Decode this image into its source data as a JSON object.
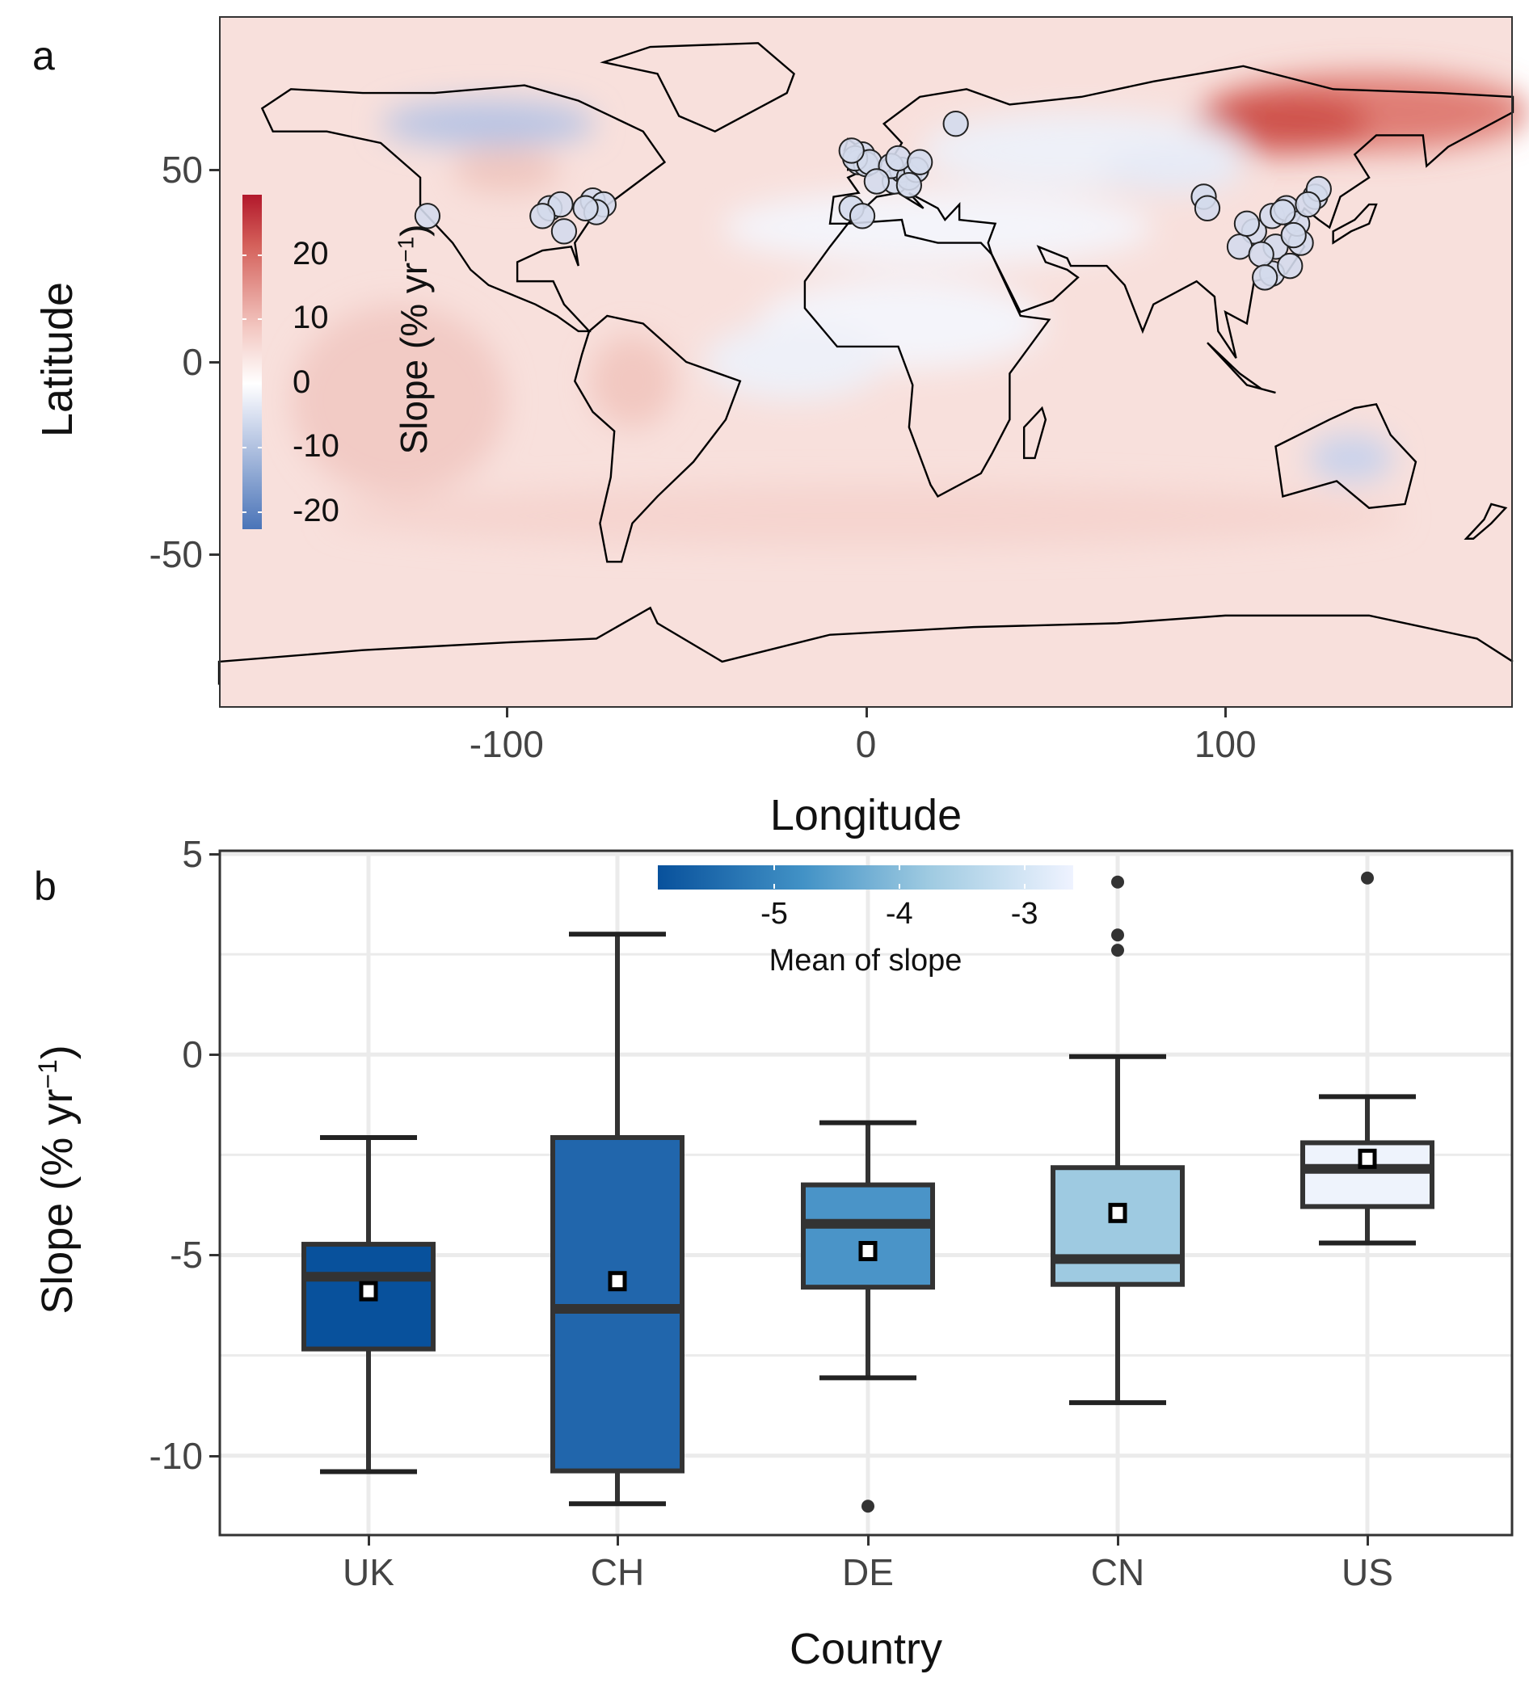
{
  "chart_data": [
    {
      "panel": "a",
      "type": "scatter",
      "subtype": "map-raster-with-site-points",
      "xlabel": "Longitude",
      "ylabel": "Latitude",
      "xlim": [
        -180,
        180
      ],
      "ylim": [
        -90,
        90
      ],
      "xticks": [
        "-100",
        "0",
        "100"
      ],
      "xtick_values": [
        -100,
        0,
        100
      ],
      "yticks": [
        "50",
        "0",
        "-50"
      ],
      "ytick_values": [
        50,
        0,
        -50
      ],
      "legend": {
        "title": "Slope (% yr",
        "title_sup": "−1",
        "title_end": ")",
        "labels": [
          "20",
          "10",
          "0",
          "-10",
          "-20"
        ],
        "values": [
          20,
          10,
          0,
          -10,
          -20
        ],
        "range": [
          -22.7,
          29.4
        ],
        "low_color": "#4a74b8",
        "mid_color": "#ffffff",
        "high_color": "#b2182b",
        "placement": "left-inside"
      },
      "sites": [
        [
          -122,
          38
        ],
        [
          -88,
          40
        ],
        [
          -85,
          41
        ],
        [
          -90,
          38
        ],
        [
          -76,
          42
        ],
        [
          -73,
          41
        ],
        [
          -75,
          39
        ],
        [
          -84,
          34
        ],
        [
          -78,
          40
        ],
        [
          -1,
          54
        ],
        [
          -2,
          52
        ],
        [
          0,
          51.5
        ],
        [
          -3,
          53
        ],
        [
          1,
          52
        ],
        [
          -4,
          55
        ],
        [
          8,
          47
        ],
        [
          10,
          50
        ],
        [
          7,
          51
        ],
        [
          12,
          48
        ],
        [
          14,
          50
        ],
        [
          9,
          53
        ],
        [
          3,
          47
        ],
        [
          -4,
          40
        ],
        [
          -1,
          38
        ],
        [
          25,
          62
        ],
        [
          12,
          46
        ],
        [
          15,
          52
        ],
        [
          94,
          43
        ],
        [
          95,
          40
        ],
        [
          108,
          34
        ],
        [
          113,
          38
        ],
        [
          117,
          40
        ],
        [
          121,
          31
        ],
        [
          113,
          23
        ],
        [
          114,
          30
        ],
        [
          120,
          36
        ],
        [
          116,
          39
        ],
        [
          125,
          43
        ],
        [
          104,
          30
        ],
        [
          110,
          28
        ],
        [
          118,
          25
        ],
        [
          126,
          45
        ],
        [
          111,
          22
        ],
        [
          106,
          36
        ],
        [
          119,
          33
        ],
        [
          123,
          41
        ]
      ]
    },
    {
      "panel": "b",
      "type": "box",
      "xlabel": "Country",
      "ylabel": "Slope (% yr",
      "ylabel_sup": "−1",
      "ylabel_end": ")",
      "ylim": [
        -12,
        5.1
      ],
      "yticks": [
        "5",
        "0",
        "-5",
        "-10"
      ],
      "ytick_values": [
        5,
        0,
        -5,
        -10
      ],
      "categories": [
        "UK",
        "CH",
        "DE",
        "CN",
        "US"
      ],
      "boxes": [
        {
          "name": "UK",
          "whisker_low": -10.4,
          "q1": -7.34,
          "median": -5.54,
          "q3": -4.73,
          "whisker_high": -2.07,
          "mean": -5.9,
          "outliers": []
        },
        {
          "name": "CH",
          "whisker_low": -11.2,
          "q1": -10.38,
          "median": -6.34,
          "q3": -2.07,
          "whisker_high": 3.0,
          "mean": -5.65,
          "outliers": []
        },
        {
          "name": "DE",
          "whisker_low": -8.06,
          "q1": -5.8,
          "median": -4.22,
          "q3": -3.25,
          "whisker_high": -1.7,
          "mean": -4.9,
          "outliers": [
            -11.26
          ]
        },
        {
          "name": "CN",
          "whisker_low": -8.68,
          "q1": -5.73,
          "median": -5.1,
          "q3": -2.82,
          "whisker_high": -0.05,
          "mean": -3.95,
          "outliers": [
            4.3,
            2.98,
            2.6
          ]
        },
        {
          "name": "US",
          "whisker_low": -4.7,
          "q1": -3.79,
          "median": -2.85,
          "q3": -2.2,
          "whisker_high": -1.05,
          "mean": -2.6,
          "outliers": [
            4.4
          ]
        }
      ],
      "legend": {
        "title": "Mean of slope",
        "labels": [
          "-5",
          "-4",
          "-3"
        ],
        "values": [
          -5,
          -4,
          -3
        ],
        "range": [
          -5.93,
          -2.61
        ],
        "low_color": "#08519c",
        "high_color": "#eff3ff",
        "placement": "top-center-inside"
      }
    }
  ],
  "labels": {
    "panel_a": "a",
    "panel_b": "b"
  }
}
